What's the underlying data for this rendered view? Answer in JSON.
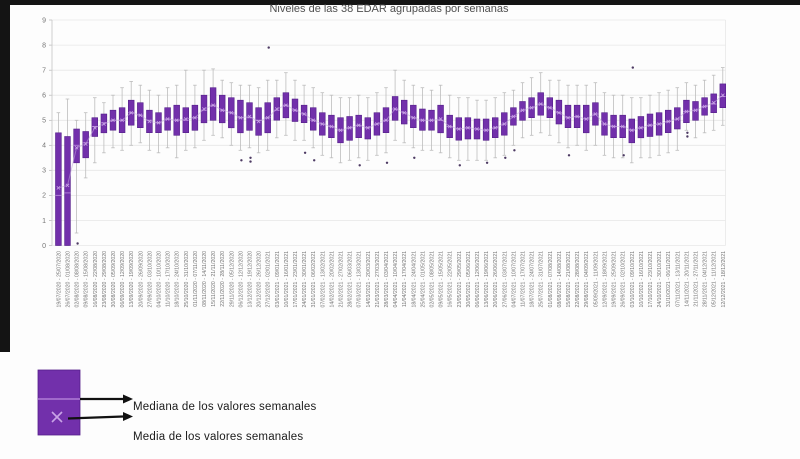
{
  "chart_data": {
    "type": "boxplot",
    "title": "Niveles de las 38 EDAR agrupadas por semanas",
    "xlabel": "",
    "ylabel": "",
    "ylim": [
      0,
      9
    ],
    "yticks": [
      0,
      1,
      2,
      3,
      4,
      5,
      6,
      7,
      8,
      9
    ],
    "grid": true,
    "legend_position": "bottom-left",
    "keys_doc": "per week: label, q1, med(median), q3, lo/hi (whisker ends), mean, out (outlier points)",
    "colors": {
      "box_fill": "#7230ab",
      "box_border": "#55208a",
      "median": "#b07cd6",
      "mean": "#c9a3e6",
      "whisker": "#bdbdbd",
      "trend": "#c3a6de",
      "outlier": "#4d3a63",
      "grid": "#e7e7e7",
      "axis_line": "#c9c9c9",
      "axis_text": "#757575",
      "arrow": "#111111"
    },
    "weeks": [
      {
        "label": "19/07/2020 - 25/07/2020",
        "q1": 0,
        "med": 2.0,
        "q3": 4.5,
        "lo": 0,
        "hi": 5.3,
        "mean": 2.3,
        "out": []
      },
      {
        "label": "26/07/2020 - 01/08/2020",
        "q1": 0,
        "med": 2.1,
        "q3": 4.35,
        "lo": 0,
        "hi": 5.85,
        "mean": 2.4,
        "out": []
      },
      {
        "label": "02/08/2020 - 08/08/2020",
        "q1": 3.3,
        "med": 4.0,
        "q3": 4.65,
        "lo": 0.5,
        "hi": 5.0,
        "mean": 3.9,
        "out": [
          0.08
        ]
      },
      {
        "label": "09/08/2020 - 15/08/2020",
        "q1": 3.5,
        "med": 4.1,
        "q3": 4.55,
        "lo": 2.7,
        "hi": 5.3,
        "mean": 4.05,
        "out": []
      },
      {
        "label": "16/08/2020 - 22/08/2020",
        "q1": 4.35,
        "med": 4.75,
        "q3": 5.1,
        "lo": 3.3,
        "hi": 5.9,
        "mean": 4.7,
        "out": []
      },
      {
        "label": "23/08/2020 - 29/08/2020",
        "q1": 4.5,
        "med": 4.9,
        "q3": 5.25,
        "lo": 3.7,
        "hi": 5.7,
        "mean": 4.85,
        "out": []
      },
      {
        "label": "30/08/2020 - 05/09/2020",
        "q1": 4.6,
        "med": 5.0,
        "q3": 5.4,
        "lo": 3.9,
        "hi": 6.0,
        "mean": 5.0,
        "out": []
      },
      {
        "label": "06/09/2020 - 12/09/2020",
        "q1": 4.5,
        "med": 5.0,
        "q3": 5.5,
        "lo": 3.8,
        "hi": 6.3,
        "mean": 5.0,
        "out": []
      },
      {
        "label": "13/09/2020 - 19/09/2020",
        "q1": 4.8,
        "med": 5.3,
        "q3": 5.8,
        "lo": 4.0,
        "hi": 6.55,
        "mean": 5.3,
        "out": []
      },
      {
        "label": "20/09/2020 - 26/09/2020",
        "q1": 4.7,
        "med": 5.2,
        "q3": 5.7,
        "lo": 4.1,
        "hi": 6.4,
        "mean": 5.2,
        "out": []
      },
      {
        "label": "27/09/2020 - 03/10/2020",
        "q1": 4.5,
        "med": 5.0,
        "q3": 5.4,
        "lo": 3.8,
        "hi": 6.2,
        "mean": 4.95,
        "out": []
      },
      {
        "label": "04/10/2020 - 10/10/2020",
        "q1": 4.5,
        "med": 4.9,
        "q3": 5.3,
        "lo": 3.7,
        "hi": 6.0,
        "mean": 4.9,
        "out": []
      },
      {
        "label": "11/10/2020 - 17/10/2020",
        "q1": 4.6,
        "med": 5.05,
        "q3": 5.5,
        "lo": 3.9,
        "hi": 6.3,
        "mean": 5.05,
        "out": []
      },
      {
        "label": "18/10/2020 - 24/10/2020",
        "q1": 4.4,
        "med": 5.0,
        "q3": 5.6,
        "lo": 3.5,
        "hi": 6.4,
        "mean": 5.0,
        "out": []
      },
      {
        "label": "25/10/2020 - 31/10/2020",
        "q1": 4.5,
        "med": 5.0,
        "q3": 5.5,
        "lo": 3.8,
        "hi": 7.0,
        "mean": 5.05,
        "out": []
      },
      {
        "label": "01/11/2020 - 07/11/2020",
        "q1": 4.6,
        "med": 5.1,
        "q3": 5.6,
        "lo": 3.9,
        "hi": 6.4,
        "mean": 5.1,
        "out": []
      },
      {
        "label": "08/11/2020 - 14/11/2020",
        "q1": 4.9,
        "med": 5.4,
        "q3": 6.0,
        "lo": 4.2,
        "hi": 7.0,
        "mean": 5.45,
        "out": []
      },
      {
        "label": "15/11/2020 - 21/11/2020",
        "q1": 5.0,
        "med": 5.6,
        "q3": 6.3,
        "lo": 4.4,
        "hi": 7.05,
        "mean": 5.6,
        "out": []
      },
      {
        "label": "22/11/2020 - 28/11/2020",
        "q1": 4.9,
        "med": 5.4,
        "q3": 6.0,
        "lo": 4.3,
        "hi": 6.6,
        "mean": 5.4,
        "out": []
      },
      {
        "label": "29/11/2020 - 05/12/2020",
        "q1": 4.7,
        "med": 5.3,
        "q3": 5.9,
        "lo": 4.0,
        "hi": 6.5,
        "mean": 5.3,
        "out": []
      },
      {
        "label": "06/12/2020 - 12/12/2020",
        "q1": 4.5,
        "med": 5.1,
        "q3": 5.8,
        "lo": 3.8,
        "hi": 6.4,
        "mean": 5.1,
        "out": [
          3.4
        ]
      },
      {
        "label": "13/12/2020 - 19/12/2020",
        "q1": 4.6,
        "med": 5.1,
        "q3": 5.7,
        "lo": 3.9,
        "hi": 6.4,
        "mean": 5.15,
        "out": [
          3.5,
          3.35
        ]
      },
      {
        "label": "20/12/2020 - 26/12/2020",
        "q1": 4.4,
        "med": 5.0,
        "q3": 5.5,
        "lo": 3.7,
        "hi": 6.3,
        "mean": 4.95,
        "out": []
      },
      {
        "label": "27/12/2020 - 02/01/2021",
        "q1": 4.5,
        "med": 5.1,
        "q3": 5.7,
        "lo": 3.8,
        "hi": 6.6,
        "mean": 5.1,
        "out": [
          7.9
        ]
      },
      {
        "label": "03/01/2021 - 09/01/2021",
        "q1": 5.0,
        "med": 5.4,
        "q3": 5.9,
        "lo": 4.3,
        "hi": 6.6,
        "mean": 5.45,
        "out": []
      },
      {
        "label": "10/01/2021 - 16/01/2021",
        "q1": 5.1,
        "med": 5.6,
        "q3": 6.1,
        "lo": 4.4,
        "hi": 6.9,
        "mean": 5.6,
        "out": []
      },
      {
        "label": "17/01/2021 - 23/01/2021",
        "q1": 4.95,
        "med": 5.4,
        "q3": 5.85,
        "lo": 4.2,
        "hi": 6.6,
        "mean": 5.4,
        "out": []
      },
      {
        "label": "24/01/2021 - 30/01/2021",
        "q1": 4.9,
        "med": 5.25,
        "q3": 5.6,
        "lo": 4.2,
        "hi": 6.4,
        "mean": 5.25,
        "out": [
          3.7
        ]
      },
      {
        "label": "31/01/2021 - 06/02/2021",
        "q1": 4.6,
        "med": 5.0,
        "q3": 5.5,
        "lo": 3.9,
        "hi": 6.3,
        "mean": 5.0,
        "out": [
          3.4
        ]
      },
      {
        "label": "07/02/2021 - 13/02/2021",
        "q1": 4.4,
        "med": 4.85,
        "q3": 5.3,
        "lo": 3.6,
        "hi": 6.1,
        "mean": 4.85,
        "out": []
      },
      {
        "label": "14/02/2021 - 20/02/2021",
        "q1": 4.3,
        "med": 4.75,
        "q3": 5.2,
        "lo": 3.5,
        "hi": 6.0,
        "mean": 4.75,
        "out": []
      },
      {
        "label": "21/02/2021 - 27/02/2021",
        "q1": 4.1,
        "med": 4.6,
        "q3": 5.1,
        "lo": 3.3,
        "hi": 5.9,
        "mean": 4.6,
        "out": []
      },
      {
        "label": "28/02/2021 - 06/03/2021",
        "q1": 4.2,
        "med": 4.7,
        "q3": 5.15,
        "lo": 3.4,
        "hi": 5.9,
        "mean": 4.7,
        "out": []
      },
      {
        "label": "07/03/2021 - 13/03/2021",
        "q1": 4.3,
        "med": 4.8,
        "q3": 5.2,
        "lo": 3.5,
        "hi": 6.0,
        "mean": 4.8,
        "out": [
          3.2
        ]
      },
      {
        "label": "14/03/2021 - 20/03/2021",
        "q1": 4.25,
        "med": 4.7,
        "q3": 5.1,
        "lo": 3.4,
        "hi": 5.9,
        "mean": 4.7,
        "out": []
      },
      {
        "label": "21/03/2021 - 27/03/2021",
        "q1": 4.4,
        "med": 4.85,
        "q3": 5.3,
        "lo": 3.6,
        "hi": 6.1,
        "mean": 4.85,
        "out": []
      },
      {
        "label": "28/03/2021 - 03/04/2021",
        "q1": 4.5,
        "med": 5.0,
        "q3": 5.5,
        "lo": 3.7,
        "hi": 6.3,
        "mean": 5.0,
        "out": [
          3.3
        ]
      },
      {
        "label": "04/04/2021 - 10/04/2021",
        "q1": 5.0,
        "med": 5.45,
        "q3": 5.95,
        "lo": 4.2,
        "hi": 7.0,
        "mean": 5.45,
        "out": []
      },
      {
        "label": "11/04/2021 - 17/04/2021",
        "q1": 4.85,
        "med": 5.3,
        "q3": 5.8,
        "lo": 4.1,
        "hi": 6.6,
        "mean": 5.3,
        "out": []
      },
      {
        "label": "18/04/2021 - 24/04/2021",
        "q1": 4.7,
        "med": 5.1,
        "q3": 5.6,
        "lo": 3.9,
        "hi": 6.4,
        "mean": 5.1,
        "out": [
          3.5
        ]
      },
      {
        "label": "25/04/2021 - 01/05/2021",
        "q1": 4.6,
        "med": 5.0,
        "q3": 5.45,
        "lo": 3.8,
        "hi": 6.3,
        "mean": 5.0,
        "out": []
      },
      {
        "label": "02/05/2021 - 08/05/2021",
        "q1": 4.6,
        "med": 5.0,
        "q3": 5.4,
        "lo": 3.8,
        "hi": 6.2,
        "mean": 5.0,
        "out": []
      },
      {
        "label": "09/05/2021 - 15/05/2021",
        "q1": 4.5,
        "med": 5.0,
        "q3": 5.6,
        "lo": 3.7,
        "hi": 6.4,
        "mean": 5.05,
        "out": []
      },
      {
        "label": "16/05/2021 - 22/05/2021",
        "q1": 4.3,
        "med": 4.75,
        "q3": 5.2,
        "lo": 3.5,
        "hi": 6.0,
        "mean": 4.75,
        "out": []
      },
      {
        "label": "23/05/2021 - 29/05/2021",
        "q1": 4.2,
        "med": 4.65,
        "q3": 5.1,
        "lo": 3.4,
        "hi": 5.9,
        "mean": 4.65,
        "out": [
          3.2
        ]
      },
      {
        "label": "30/05/2021 - 05/06/2021",
        "q1": 4.25,
        "med": 4.7,
        "q3": 5.1,
        "lo": 3.4,
        "hi": 5.9,
        "mean": 4.7,
        "out": []
      },
      {
        "label": "06/06/2021 - 12/06/2021",
        "q1": 4.25,
        "med": 4.65,
        "q3": 5.05,
        "lo": 3.4,
        "hi": 5.8,
        "mean": 4.65,
        "out": []
      },
      {
        "label": "13/06/2021 - 19/06/2021",
        "q1": 4.2,
        "med": 4.6,
        "q3": 5.05,
        "lo": 3.4,
        "hi": 5.8,
        "mean": 4.6,
        "out": [
          3.3
        ]
      },
      {
        "label": "20/06/2021 - 26/06/2021",
        "q1": 4.3,
        "med": 4.7,
        "q3": 5.1,
        "lo": 3.5,
        "hi": 5.9,
        "mean": 4.7,
        "out": []
      },
      {
        "label": "27/06/2021 - 03/07/2021",
        "q1": 4.4,
        "med": 4.85,
        "q3": 5.3,
        "lo": 3.6,
        "hi": 6.1,
        "mean": 4.85,
        "out": [
          3.5
        ]
      },
      {
        "label": "04/07/2021 - 10/07/2021",
        "q1": 4.8,
        "med": 5.15,
        "q3": 5.5,
        "lo": 4.0,
        "hi": 6.2,
        "mean": 5.15,
        "out": [
          3.8
        ]
      },
      {
        "label": "11/07/2021 - 17/07/2021",
        "q1": 5.0,
        "med": 5.4,
        "q3": 5.75,
        "lo": 4.3,
        "hi": 6.5,
        "mean": 5.4,
        "out": []
      },
      {
        "label": "18/07/2021 - 24/07/2021",
        "q1": 5.1,
        "med": 5.5,
        "q3": 5.9,
        "lo": 4.4,
        "hi": 6.7,
        "mean": 5.5,
        "out": []
      },
      {
        "label": "25/07/2021 - 31/07/2021",
        "q1": 5.2,
        "med": 5.65,
        "q3": 6.1,
        "lo": 4.5,
        "hi": 6.9,
        "mean": 5.65,
        "out": []
      },
      {
        "label": "01/08/2021 - 07/08/2021",
        "q1": 5.1,
        "med": 5.5,
        "q3": 5.9,
        "lo": 4.4,
        "hi": 6.6,
        "mean": 5.5,
        "out": []
      },
      {
        "label": "08/08/2021 - 14/08/2021",
        "q1": 4.85,
        "med": 5.3,
        "q3": 5.8,
        "lo": 4.1,
        "hi": 6.6,
        "mean": 5.3,
        "out": []
      },
      {
        "label": "15/08/2021 - 21/08/2021",
        "q1": 4.7,
        "med": 5.1,
        "q3": 5.6,
        "lo": 3.9,
        "hi": 6.4,
        "mean": 5.1,
        "out": [
          3.6
        ]
      },
      {
        "label": "22/08/2021 - 28/08/2021",
        "q1": 4.7,
        "med": 5.15,
        "q3": 5.6,
        "lo": 4.0,
        "hi": 6.4,
        "mean": 5.15,
        "out": []
      },
      {
        "label": "29/08/2021 - 04/09/2021",
        "q1": 4.5,
        "med": 5.05,
        "q3": 5.6,
        "lo": 3.8,
        "hi": 6.4,
        "mean": 5.05,
        "out": []
      },
      {
        "label": "05/09/2021 - 11/09/2021",
        "q1": 4.8,
        "med": 5.25,
        "q3": 5.7,
        "lo": 4.0,
        "hi": 6.5,
        "mean": 5.25,
        "out": []
      },
      {
        "label": "12/09/2021 - 18/09/2021",
        "q1": 4.4,
        "med": 4.85,
        "q3": 5.3,
        "lo": 3.6,
        "hi": 6.1,
        "mean": 4.85,
        "out": []
      },
      {
        "label": "19/09/2021 - 25/09/2021",
        "q1": 4.3,
        "med": 4.75,
        "q3": 5.2,
        "lo": 3.5,
        "hi": 6.0,
        "mean": 4.75,
        "out": []
      },
      {
        "label": "26/09/2021 - 02/10/2021",
        "q1": 4.3,
        "med": 4.75,
        "q3": 5.2,
        "lo": 3.5,
        "hi": 6.0,
        "mean": 4.75,
        "out": [
          3.6
        ]
      },
      {
        "label": "03/10/2021 - 09/10/2021",
        "q1": 4.1,
        "med": 4.6,
        "q3": 5.05,
        "lo": 3.3,
        "hi": 5.9,
        "mean": 4.6,
        "out": [
          7.1
        ]
      },
      {
        "label": "10/10/2021 - 16/10/2021",
        "q1": 4.3,
        "med": 4.7,
        "q3": 5.15,
        "lo": 3.5,
        "hi": 5.9,
        "mean": 4.7,
        "out": []
      },
      {
        "label": "17/10/2021 - 23/10/2021",
        "q1": 4.35,
        "med": 4.8,
        "q3": 5.25,
        "lo": 3.5,
        "hi": 6.0,
        "mean": 4.8,
        "out": []
      },
      {
        "label": "24/10/2021 - 30/10/2021",
        "q1": 4.4,
        "med": 4.85,
        "q3": 5.3,
        "lo": 3.6,
        "hi": 6.1,
        "mean": 4.85,
        "out": []
      },
      {
        "label": "31/10/2021 - 06/11/2021",
        "q1": 4.5,
        "med": 4.95,
        "q3": 5.4,
        "lo": 3.7,
        "hi": 6.2,
        "mean": 4.95,
        "out": []
      },
      {
        "label": "07/11/2021 - 13/11/2021",
        "q1": 4.65,
        "med": 5.05,
        "q3": 5.5,
        "lo": 3.8,
        "hi": 6.3,
        "mean": 5.05,
        "out": []
      },
      {
        "label": "14/11/2021 - 20/11/2021",
        "q1": 4.9,
        "med": 5.35,
        "q3": 5.8,
        "lo": 4.6,
        "hi": 6.5,
        "mean": 5.35,
        "out": [
          4.5,
          4.35
        ]
      },
      {
        "label": "21/11/2021 - 27/11/2021",
        "q1": 5.0,
        "med": 5.4,
        "q3": 5.75,
        "lo": 4.3,
        "hi": 6.4,
        "mean": 5.4,
        "out": []
      },
      {
        "label": "28/11/2021 - 04/12/2021",
        "q1": 5.2,
        "med": 5.55,
        "q3": 5.9,
        "lo": 4.5,
        "hi": 6.6,
        "mean": 5.55,
        "out": []
      },
      {
        "label": "05/12/2021 - 11/12/2021",
        "q1": 5.3,
        "med": 5.65,
        "q3": 6.05,
        "lo": 4.6,
        "hi": 6.8,
        "mean": 5.7,
        "out": []
      },
      {
        "label": "12/12/2021 - 18/12/2021",
        "q1": 5.5,
        "med": 5.95,
        "q3": 6.45,
        "lo": 4.8,
        "hi": 7.1,
        "mean": 6.0,
        "out": []
      }
    ]
  },
  "legend": {
    "median_label": "Mediana de los valores semanales",
    "mean_label": "Media de los valores semanales"
  }
}
